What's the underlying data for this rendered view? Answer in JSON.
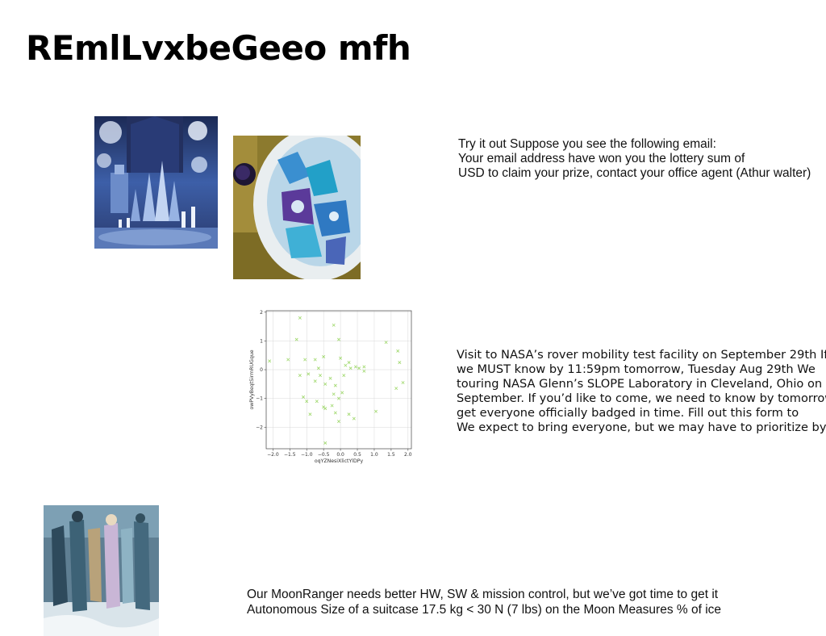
{
  "slide": {
    "title": "REmlLvxbeGeeo mfh"
  },
  "email_block": {
    "lines": [
      "Try it out Suppose you see the following email:",
      "Your email address have won you the lottery sum of",
      "USD to claim your prize, contact your office agent (Athur walter)"
    ]
  },
  "nasa_block": {
    "lines": [
      "Visit to NASA’s rover mobility test facility on September 29th If",
      "we MUST know by 11:59pm tomorrow, Tuesday Aug 29th We",
      "touring NASA Glenn’s SLOPE Laboratory in Cleveland, Ohio on",
      "September. If you’d like to come, we need to know by tomorrow",
      "get everyone officially badged in time. Fill out this form to",
      "We expect to bring everyone, but we may have to prioritize by"
    ]
  },
  "moon_block": {
    "lines": [
      "Our MoonRanger needs better HW, SW & mission control, but we’ve got time to get it",
      "Autonomous Size of a suitcase 17.5 kg < 30 N (7 lbs) on the Moon Measures % of ice"
    ]
  },
  "chart_data": {
    "type": "scatter",
    "xlabel": "oqYZNesiXlictYlDPy",
    "ylabel": "owPVyBeqtSirmRUGque",
    "xlim": [
      -2.2,
      2.1
    ],
    "ylim": [
      -2.75,
      2.05
    ],
    "xticks": [
      "−2.0",
      "−1.5",
      "−1.0",
      "−0.5",
      "0.0",
      "0.5",
      "1.0",
      "1.5",
      "2.0"
    ],
    "xtick_values": [
      -2.0,
      -1.5,
      -1.0,
      -0.5,
      0.0,
      0.5,
      1.0,
      1.5,
      2.0
    ],
    "yticks": [
      "−2",
      "−1",
      "0",
      "1",
      "2"
    ],
    "ytick_values": [
      -2,
      -1,
      0,
      1,
      2
    ],
    "grid": true,
    "marker": "x",
    "color": "#9fd86b",
    "points": [
      [
        -1.2,
        1.8
      ],
      [
        -0.2,
        1.55
      ],
      [
        -1.3,
        1.05
      ],
      [
        -0.05,
        1.05
      ],
      [
        1.35,
        0.95
      ],
      [
        1.7,
        0.65
      ],
      [
        -1.55,
        0.35
      ],
      [
        -2.1,
        0.3
      ],
      [
        -1.05,
        0.35
      ],
      [
        -0.75,
        0.35
      ],
      [
        -0.5,
        0.45
      ],
      [
        0.0,
        0.4
      ],
      [
        0.25,
        0.25
      ],
      [
        1.75,
        0.25
      ],
      [
        0.15,
        0.15
      ],
      [
        0.45,
        0.1
      ],
      [
        0.7,
        0.1
      ],
      [
        0.3,
        0.05
      ],
      [
        -0.65,
        0.05
      ],
      [
        0.55,
        0.05
      ],
      [
        0.7,
        -0.05
      ],
      [
        -1.2,
        -0.2
      ],
      [
        -0.95,
        -0.15
      ],
      [
        -0.6,
        -0.2
      ],
      [
        -0.3,
        -0.3
      ],
      [
        0.1,
        -0.2
      ],
      [
        1.85,
        -0.45
      ],
      [
        -0.75,
        -0.4
      ],
      [
        -0.45,
        -0.5
      ],
      [
        -0.15,
        -0.55
      ],
      [
        1.65,
        -0.65
      ],
      [
        0.05,
        -0.8
      ],
      [
        -0.2,
        -0.85
      ],
      [
        -1.1,
        -0.95
      ],
      [
        -1.0,
        -1.1
      ],
      [
        -0.7,
        -1.1
      ],
      [
        -0.05,
        -1.0
      ],
      [
        -0.5,
        -1.3
      ],
      [
        -0.25,
        -1.25
      ],
      [
        -0.45,
        -1.35
      ],
      [
        1.05,
        -1.45
      ],
      [
        -0.9,
        -1.55
      ],
      [
        -0.15,
        -1.5
      ],
      [
        0.25,
        -1.55
      ],
      [
        0.4,
        -1.7
      ],
      [
        -0.05,
        -1.8
      ],
      [
        -0.45,
        -2.55
      ]
    ]
  }
}
